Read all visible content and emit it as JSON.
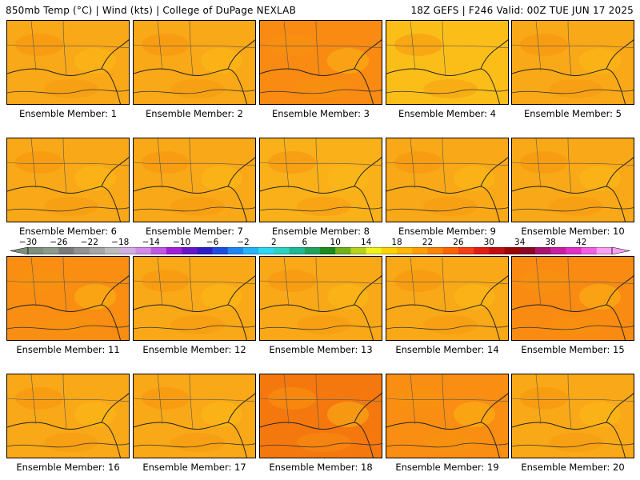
{
  "header": {
    "left": "850mb Temp (°C) | Wind (kts) | College of DuPage NEXLAB",
    "right": "18Z GEFS | F246 Valid: 00Z TUE JUN 17 2025"
  },
  "colorbar": {
    "labels": [
      "−30",
      "−26",
      "−22",
      "−18",
      "−14",
      "−10",
      "−6",
      "−2",
      "2",
      "6",
      "10",
      "14",
      "18",
      "22",
      "26",
      "30",
      "34",
      "38",
      "42"
    ],
    "colors": [
      "#7f8f7f",
      "#8c9a8c",
      "#7a7a7a",
      "#929292",
      "#a6a6a6",
      "#bcbcbc",
      "#d2aee6",
      "#d38ae8",
      "#c157e0",
      "#a21fd8",
      "#6a16c8",
      "#2f1ec8",
      "#1e4ce0",
      "#1f86f0",
      "#25b4f5",
      "#2ed8f0",
      "#2ed2c0",
      "#20b894",
      "#21a25a",
      "#1c8a1c",
      "#6fb21e",
      "#b6d21c",
      "#f2f21e",
      "#ffd200",
      "#ffb800",
      "#ffa000",
      "#ff8400",
      "#ff6400",
      "#f43e14",
      "#e01e14",
      "#c00e0e",
      "#9a0606",
      "#8c0626",
      "#a8146e",
      "#c81ea0",
      "#e030c8",
      "#f060e4",
      "#f8a0f2"
    ]
  },
  "members": [
    {
      "label": "Ensemble Member: 1",
      "color": "#f9a817"
    },
    {
      "label": "Ensemble Member: 2",
      "color": "#f9a817"
    },
    {
      "label": "Ensemble Member: 3",
      "color": "#f98a12"
    },
    {
      "label": "Ensemble Member: 4",
      "color": "#fbbe19"
    },
    {
      "label": "Ensemble Member: 5",
      "color": "#f9a817"
    },
    {
      "label": "Ensemble Member: 6",
      "color": "#f9a817"
    },
    {
      "label": "Ensemble Member: 7",
      "color": "#f9a817"
    },
    {
      "label": "Ensemble Member: 8",
      "color": "#f9b019"
    },
    {
      "label": "Ensemble Member: 9",
      "color": "#f9a817"
    },
    {
      "label": "Ensemble Member: 10",
      "color": "#f9a817"
    },
    {
      "label": "Ensemble Member: 11",
      "color": "#f98e12"
    },
    {
      "label": "Ensemble Member: 12",
      "color": "#f9a817"
    },
    {
      "label": "Ensemble Member: 13",
      "color": "#f9a817"
    },
    {
      "label": "Ensemble Member: 14",
      "color": "#f9a817"
    },
    {
      "label": "Ensemble Member: 15",
      "color": "#f98a12"
    },
    {
      "label": "Ensemble Member: 16",
      "color": "#f9a817"
    },
    {
      "label": "Ensemble Member: 17",
      "color": "#f9a817"
    },
    {
      "label": "Ensemble Member: 18",
      "color": "#f5780f"
    },
    {
      "label": "Ensemble Member: 19",
      "color": "#f98e12"
    },
    {
      "label": "Ensemble Member: 20",
      "color": "#f9a817"
    }
  ]
}
